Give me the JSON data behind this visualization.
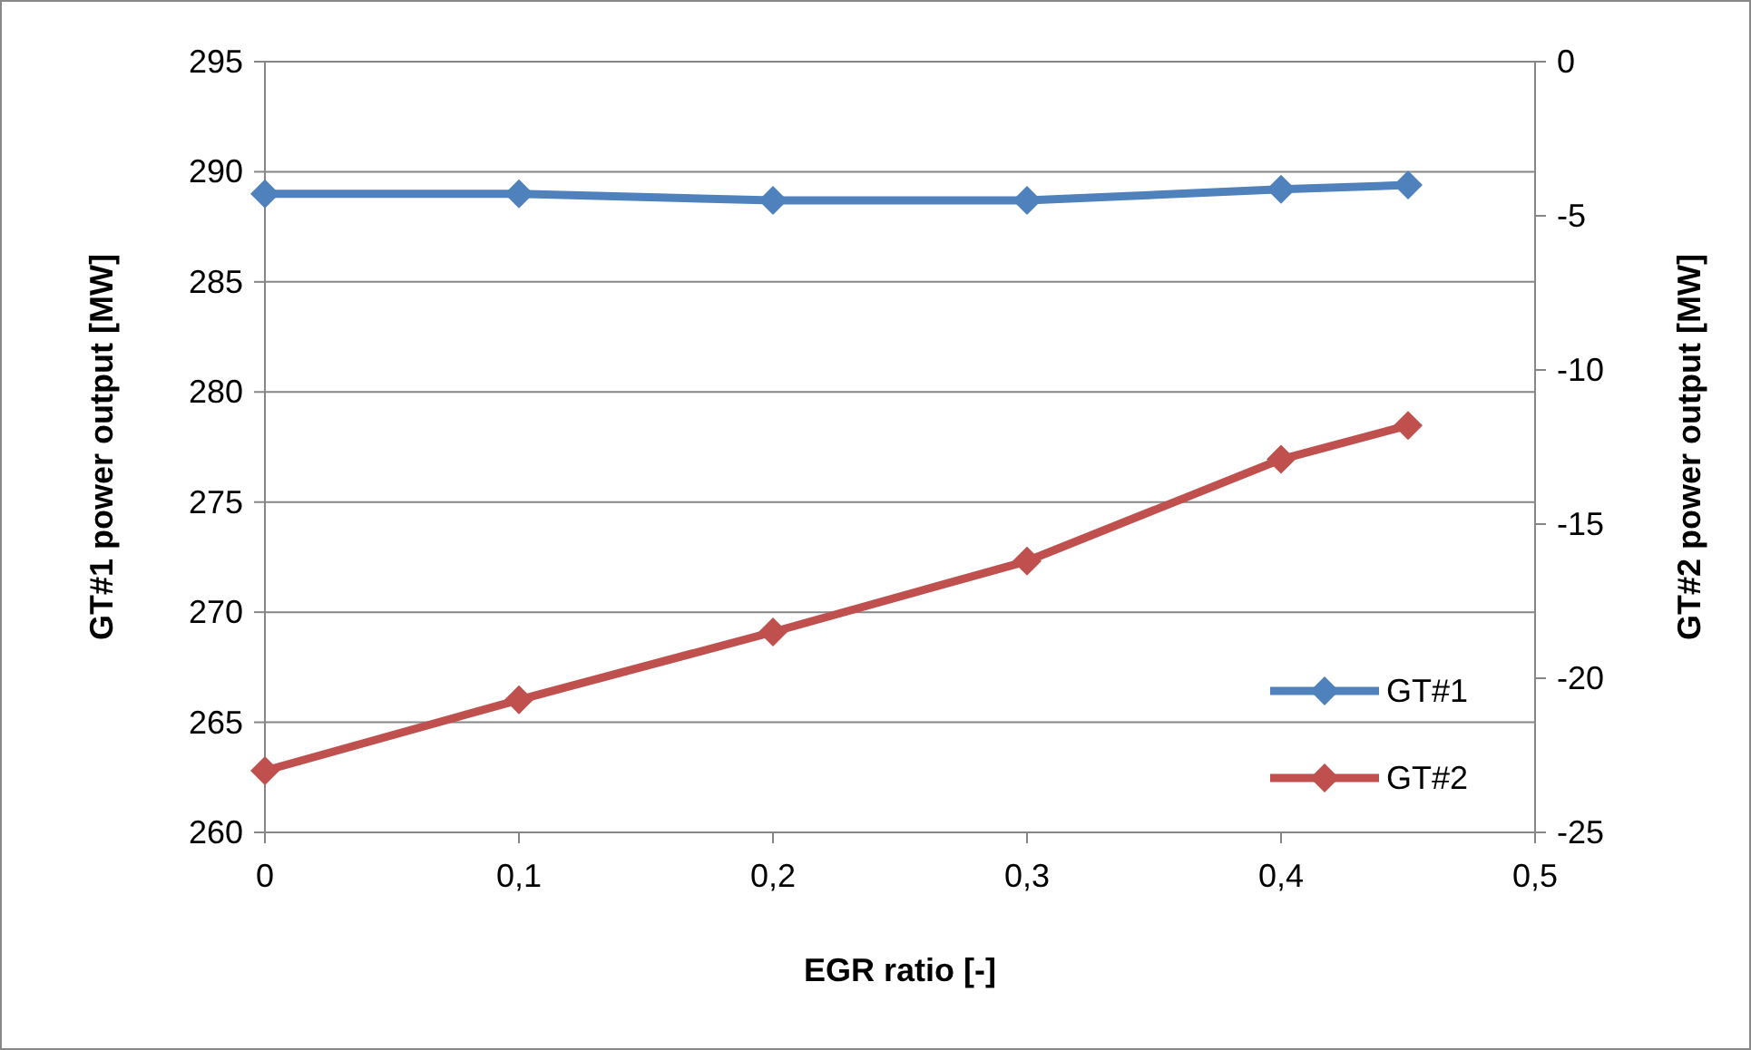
{
  "chart_data": {
    "type": "line",
    "xlabel": "EGR ratio [-]",
    "ylabel": "GT#1 power output [MW]",
    "y2label": "GT#2 power output [MW]",
    "x": [
      0,
      0.1,
      0.2,
      0.3,
      0.4,
      0.45
    ],
    "series": [
      {
        "name": "GT#1",
        "color": "#4f81bd",
        "values": [
          289.0,
          289.0,
          288.7,
          288.7,
          289.2,
          289.4
        ]
      },
      {
        "name": "GT#2",
        "color": "#c0504d",
        "axis": "y2",
        "values": [
          -23.0,
          -20.7,
          -18.5,
          -16.2,
          -12.9,
          -11.8
        ]
      }
    ],
    "xlim": [
      0,
      0.5
    ],
    "xticks": [
      0,
      {
        "value": 0.1,
        "label": "0,1"
      },
      {
        "value": 0.2,
        "label": "0,2"
      },
      {
        "value": 0.3,
        "label": "0,3"
      },
      {
        "value": 0.4,
        "label": "0,4"
      },
      {
        "value": 0.5,
        "label": "0,5"
      }
    ],
    "ylim": [
      260,
      295
    ],
    "yticks": [
      260,
      265,
      270,
      275,
      280,
      285,
      290,
      295
    ],
    "y2lim": [
      -25,
      0
    ],
    "y2ticks": [
      -25,
      -20,
      -15,
      -10,
      -5,
      0
    ],
    "grid": "y",
    "legend": "bottom right",
    "marker": "diamond",
    "line_style": "solid"
  }
}
